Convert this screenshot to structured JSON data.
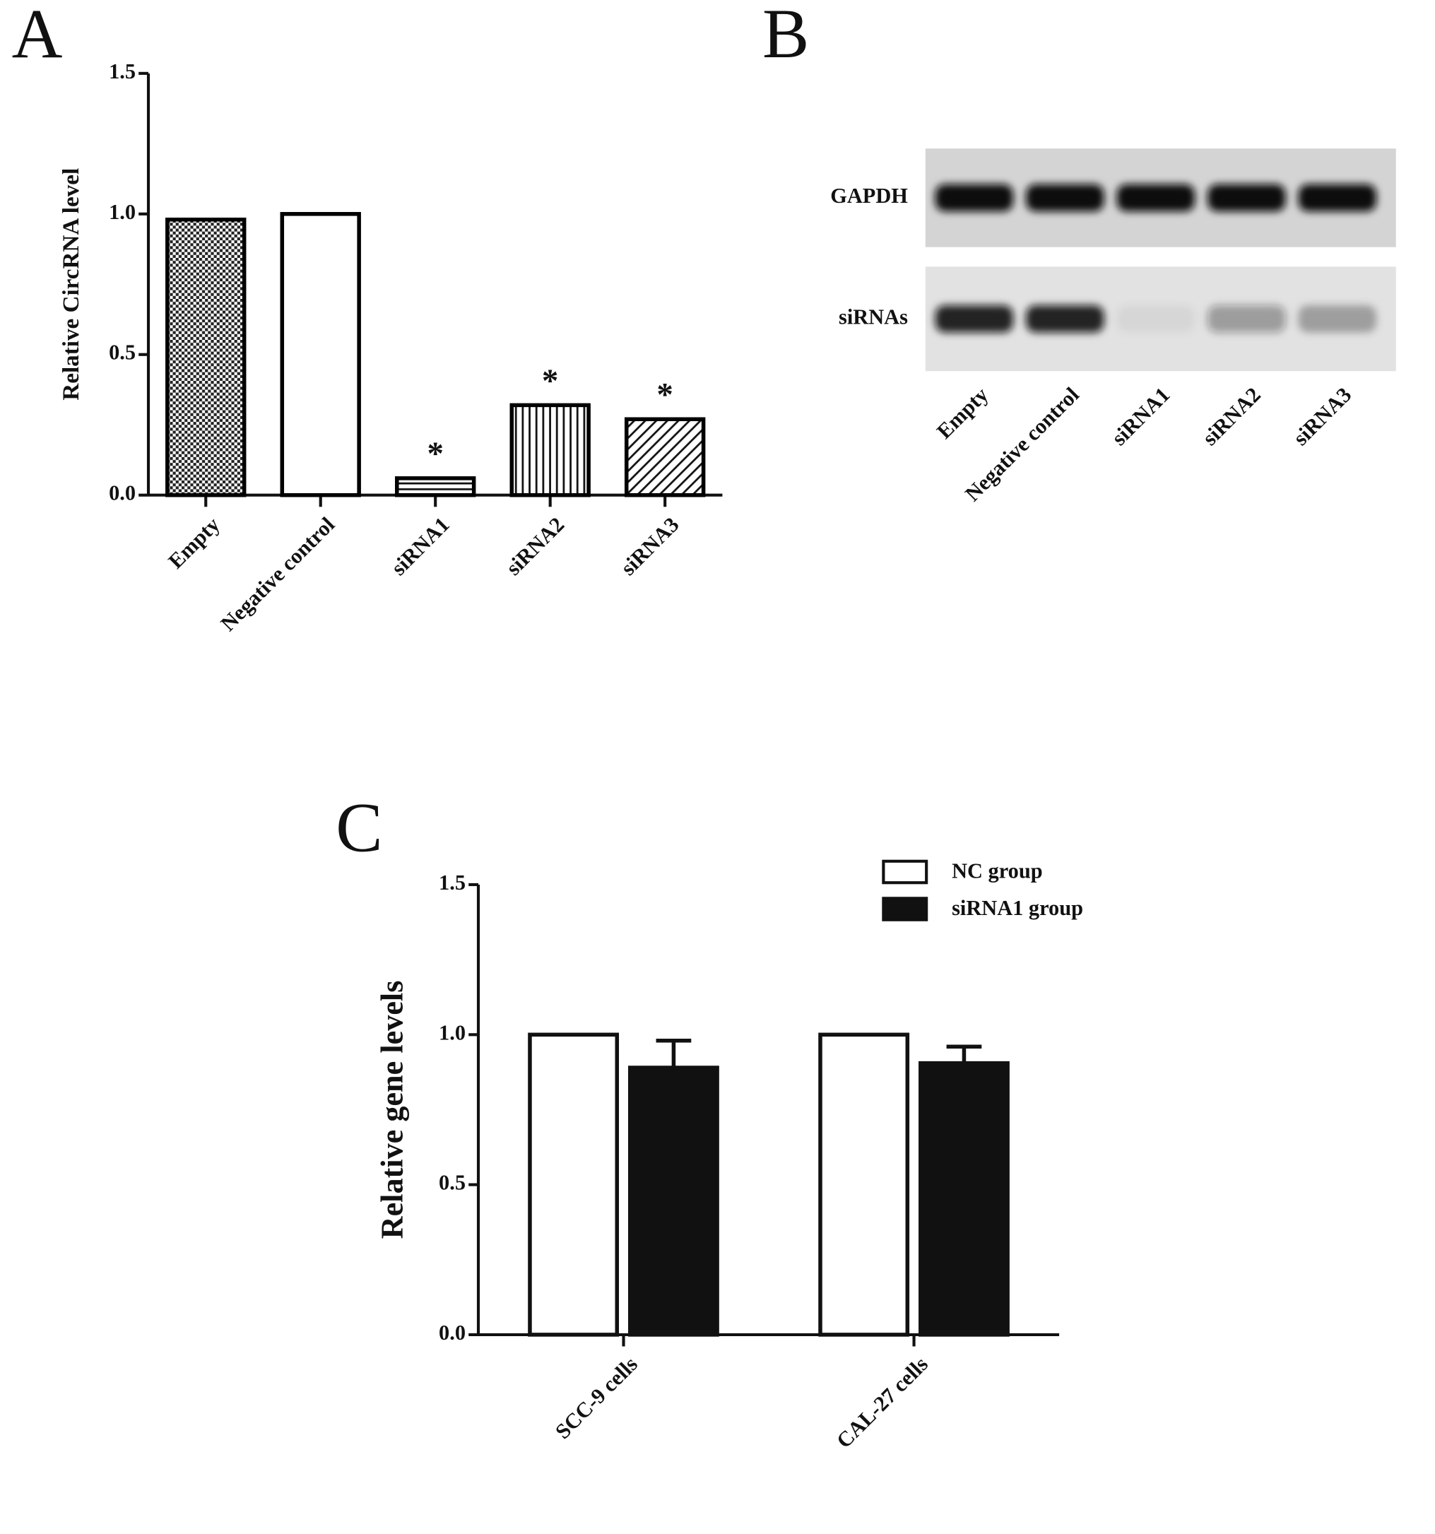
{
  "chart_data": [
    {
      "type": "bar",
      "panel_label": "A",
      "y_label": "Relative  CircRNA level",
      "categories": [
        "Empty",
        "Negative control",
        "siRNA1",
        "siRNA2",
        "siRNA3"
      ],
      "values": [
        0.98,
        1.0,
        0.06,
        0.32,
        0.27
      ],
      "patterns": [
        "checker",
        "none",
        "hlines",
        "vlines",
        "diagonal"
      ],
      "value_annotations": [
        null,
        null,
        "*",
        "*",
        "*"
      ],
      "color": "#000000",
      "ylim": [
        0,
        1.5
      ],
      "yticks": [
        {
          "value": 0,
          "label": "0.0"
        },
        {
          "value": 0.5,
          "label": "0.5"
        },
        {
          "value": 1,
          "label": "1.0"
        },
        {
          "value": 1.5,
          "label": "1.5"
        }
      ]
    },
    {
      "type": "blot",
      "panel_label": "B",
      "categories": [
        "Empty",
        "Negative control",
        "siRNA1",
        "siRNA2",
        "siRNA3"
      ],
      "series": [
        {
          "name": "GAPDH",
          "values": [
            1,
            1,
            1,
            1,
            1
          ]
        },
        {
          "name": "siRNAs",
          "values": [
            0.9,
            0.9,
            0.05,
            0.35,
            0.3
          ]
        }
      ]
    },
    {
      "type": "bar",
      "panel_label": "C",
      "y_label": "Relative  gene  levels",
      "categories": [
        "SCC-9 cells",
        "CAL-27 cells"
      ],
      "series": [
        {
          "name": "NC group",
          "color": "#ffffff",
          "values": [
            1.0,
            1.0
          ]
        },
        {
          "name": "siRNA1 group",
          "color": "#111111",
          "values": [
            0.89,
            0.905
          ],
          "errors": [
            0.09,
            0.055
          ]
        }
      ],
      "legend": "upper right",
      "ylim": [
        0,
        1.5
      ],
      "yticks": [
        {
          "value": 0,
          "label": "0.0"
        },
        {
          "value": 0.5,
          "label": "0.5"
        },
        {
          "value": 1,
          "label": "1.0"
        },
        {
          "value": 1.5,
          "label": "1.5"
        }
      ]
    }
  ]
}
